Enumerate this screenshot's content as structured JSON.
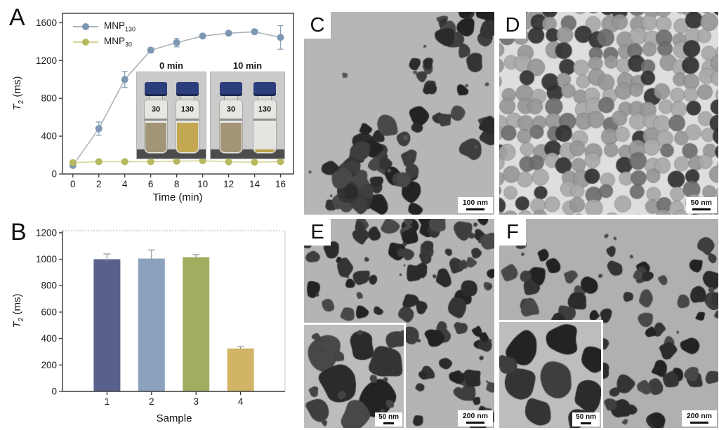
{
  "panels": {
    "a": "A",
    "b": "B"
  },
  "chart_data": [
    {
      "type": "line",
      "panel": "A",
      "xlabel": "Time (min)",
      "ylabel": "T2 (ms)",
      "ylabel_parts": {
        "symbol": "T",
        "subscript": "2",
        "units": " (ms)"
      },
      "x": [
        0,
        2,
        4,
        6,
        8,
        10,
        12,
        14,
        16
      ],
      "xticks": [
        0,
        2,
        4,
        6,
        8,
        10,
        12,
        14,
        16
      ],
      "yticks": [
        0,
        400,
        800,
        1200,
        1600
      ],
      "xlim": [
        -0.8,
        17
      ],
      "ylim": [
        0,
        1700
      ],
      "grid": false,
      "legend_position": "top-left",
      "series": [
        {
          "name": "MNP130",
          "name_main": "MNP",
          "name_sub": "130",
          "marker_color": "#7d96b2",
          "line_color": "#a9b4bd",
          "error_color": "#8ba0b4",
          "values": [
            90,
            480,
            1000,
            1310,
            1390,
            1460,
            1490,
            1505,
            1445
          ],
          "errors": [
            15,
            70,
            85,
            25,
            45,
            15,
            12,
            25,
            125
          ]
        },
        {
          "name": "MNP30",
          "name_main": "MNP",
          "name_sub": "30",
          "marker_color": "#b7b95e",
          "line_color": "#d6d494",
          "error_color": "#b7b95e",
          "values": [
            120,
            130,
            130,
            130,
            135,
            140,
            128,
            125,
            130
          ],
          "errors": [
            0,
            0,
            0,
            0,
            0,
            0,
            0,
            0,
            0
          ]
        }
      ],
      "inset": {
        "cap_color": "#2d3e7c",
        "photos": [
          {
            "title": "0 min",
            "vials": [
              {
                "label": "30",
                "liquid_color": "#a39577"
              },
              {
                "label": "130",
                "liquid_color": "#c4a851"
              }
            ]
          },
          {
            "title": "10 min",
            "vials": [
              {
                "label": "30",
                "liquid_color": "#a39577"
              },
              {
                "label": "130",
                "liquid_color": "#e4e4e0",
                "sediment_color": "#b9a24c"
              }
            ]
          }
        ]
      }
    },
    {
      "type": "bar",
      "panel": "B",
      "xlabel": "Sample",
      "ylabel": "T2 (ms)",
      "ylabel_parts": {
        "symbol": "T",
        "subscript": "2",
        "units": " (ms)"
      },
      "categories": [
        "1",
        "2",
        "3",
        "4"
      ],
      "values": [
        1000,
        1005,
        1015,
        325
      ],
      "errors": [
        40,
        65,
        20,
        15
      ],
      "bar_colors": [
        "#59618b",
        "#8ba1bc",
        "#a2ad60",
        "#d1b465"
      ],
      "yticks": [
        0,
        200,
        400,
        600,
        800,
        1000,
        1200
      ],
      "ylim": [
        0,
        1215
      ],
      "grid": false
    }
  ],
  "tem_panels": [
    {
      "label": "C",
      "scale_bar": "100 nm"
    },
    {
      "label": "D",
      "scale_bar": "50 nm"
    },
    {
      "label": "E",
      "scale_bar": "200 nm",
      "inset_scale_bar": "50 nm"
    },
    {
      "label": "F",
      "scale_bar": "200 nm",
      "inset_scale_bar": "50 nm"
    }
  ]
}
